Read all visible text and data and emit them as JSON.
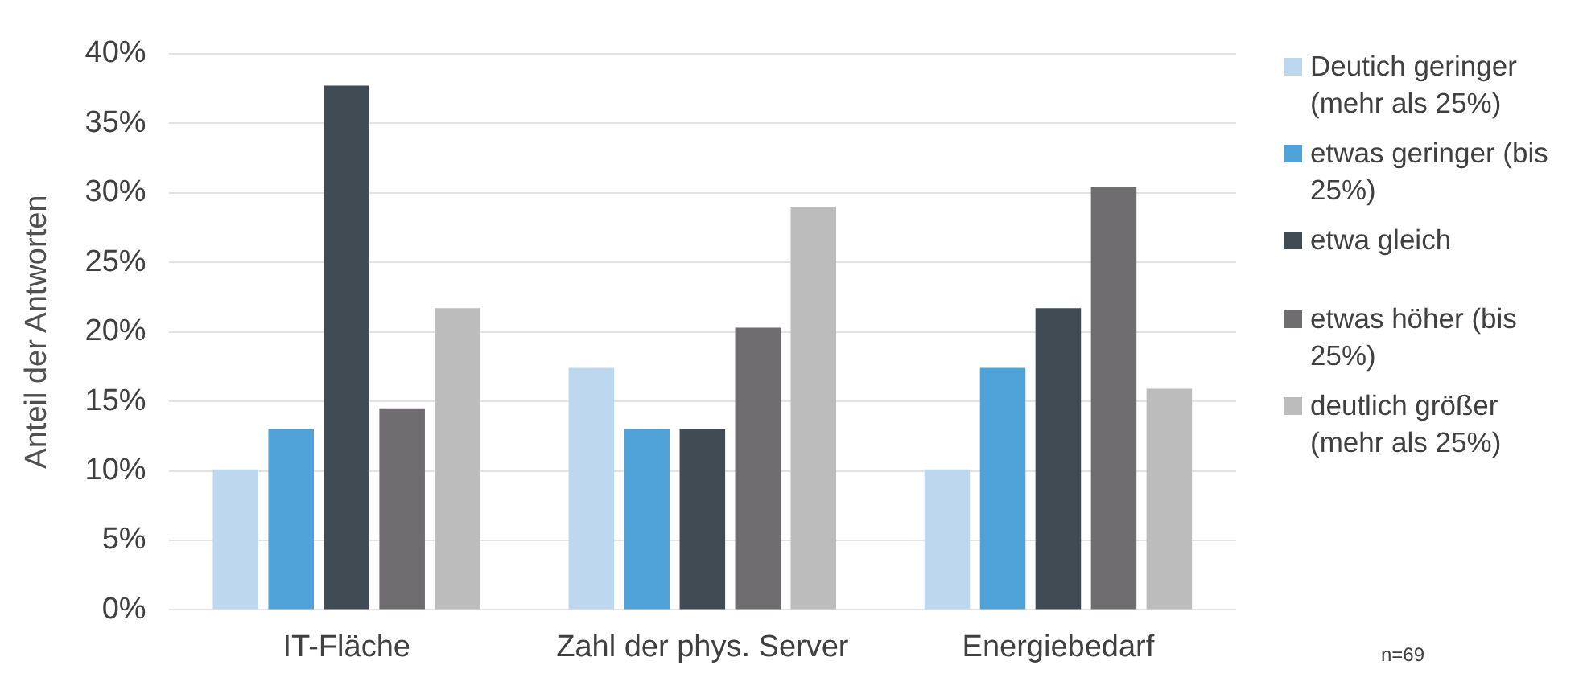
{
  "chart_data": {
    "type": "bar",
    "ylabel": "Anteil der Antworten",
    "categories": [
      "IT-Fläche",
      "Zahl der phys. Server",
      "Energiebedarf"
    ],
    "series": [
      {
        "name": "Deutich geringer (mehr als 25%)",
        "color": "#bdd7ee",
        "values": [
          10.1,
          17.4,
          10.1
        ]
      },
      {
        "name": "etwas geringer (bis 25%)",
        "color": "#4fa3d9",
        "values": [
          13.0,
          13.0,
          17.4
        ]
      },
      {
        "name": "etwa gleich",
        "color": "#404b53",
        "values": [
          37.7,
          13.0,
          21.7
        ]
      },
      {
        "name": "etwas höher (bis 25%)",
        "color": "#6f6d70",
        "values": [
          14.5,
          20.3,
          30.4
        ]
      },
      {
        "name": "deutlich größer (mehr als 25%)",
        "color": "#bcbcbc",
        "values": [
          21.7,
          29.0,
          15.9
        ]
      }
    ],
    "ylim": [
      0,
      40
    ],
    "yticks": [
      {
        "value": 0,
        "label": "0%"
      },
      {
        "value": 5,
        "label": "5%"
      },
      {
        "value": 10,
        "label": "10%"
      },
      {
        "value": 15,
        "label": "15%"
      },
      {
        "value": 20,
        "label": "20%"
      },
      {
        "value": 25,
        "label": "25%"
      },
      {
        "value": 30,
        "label": "30%"
      },
      {
        "value": 35,
        "label": "35%"
      },
      {
        "value": 40,
        "label": "40%"
      }
    ],
    "grid": "y",
    "legend": "right",
    "annotations": [
      "n=69"
    ]
  }
}
